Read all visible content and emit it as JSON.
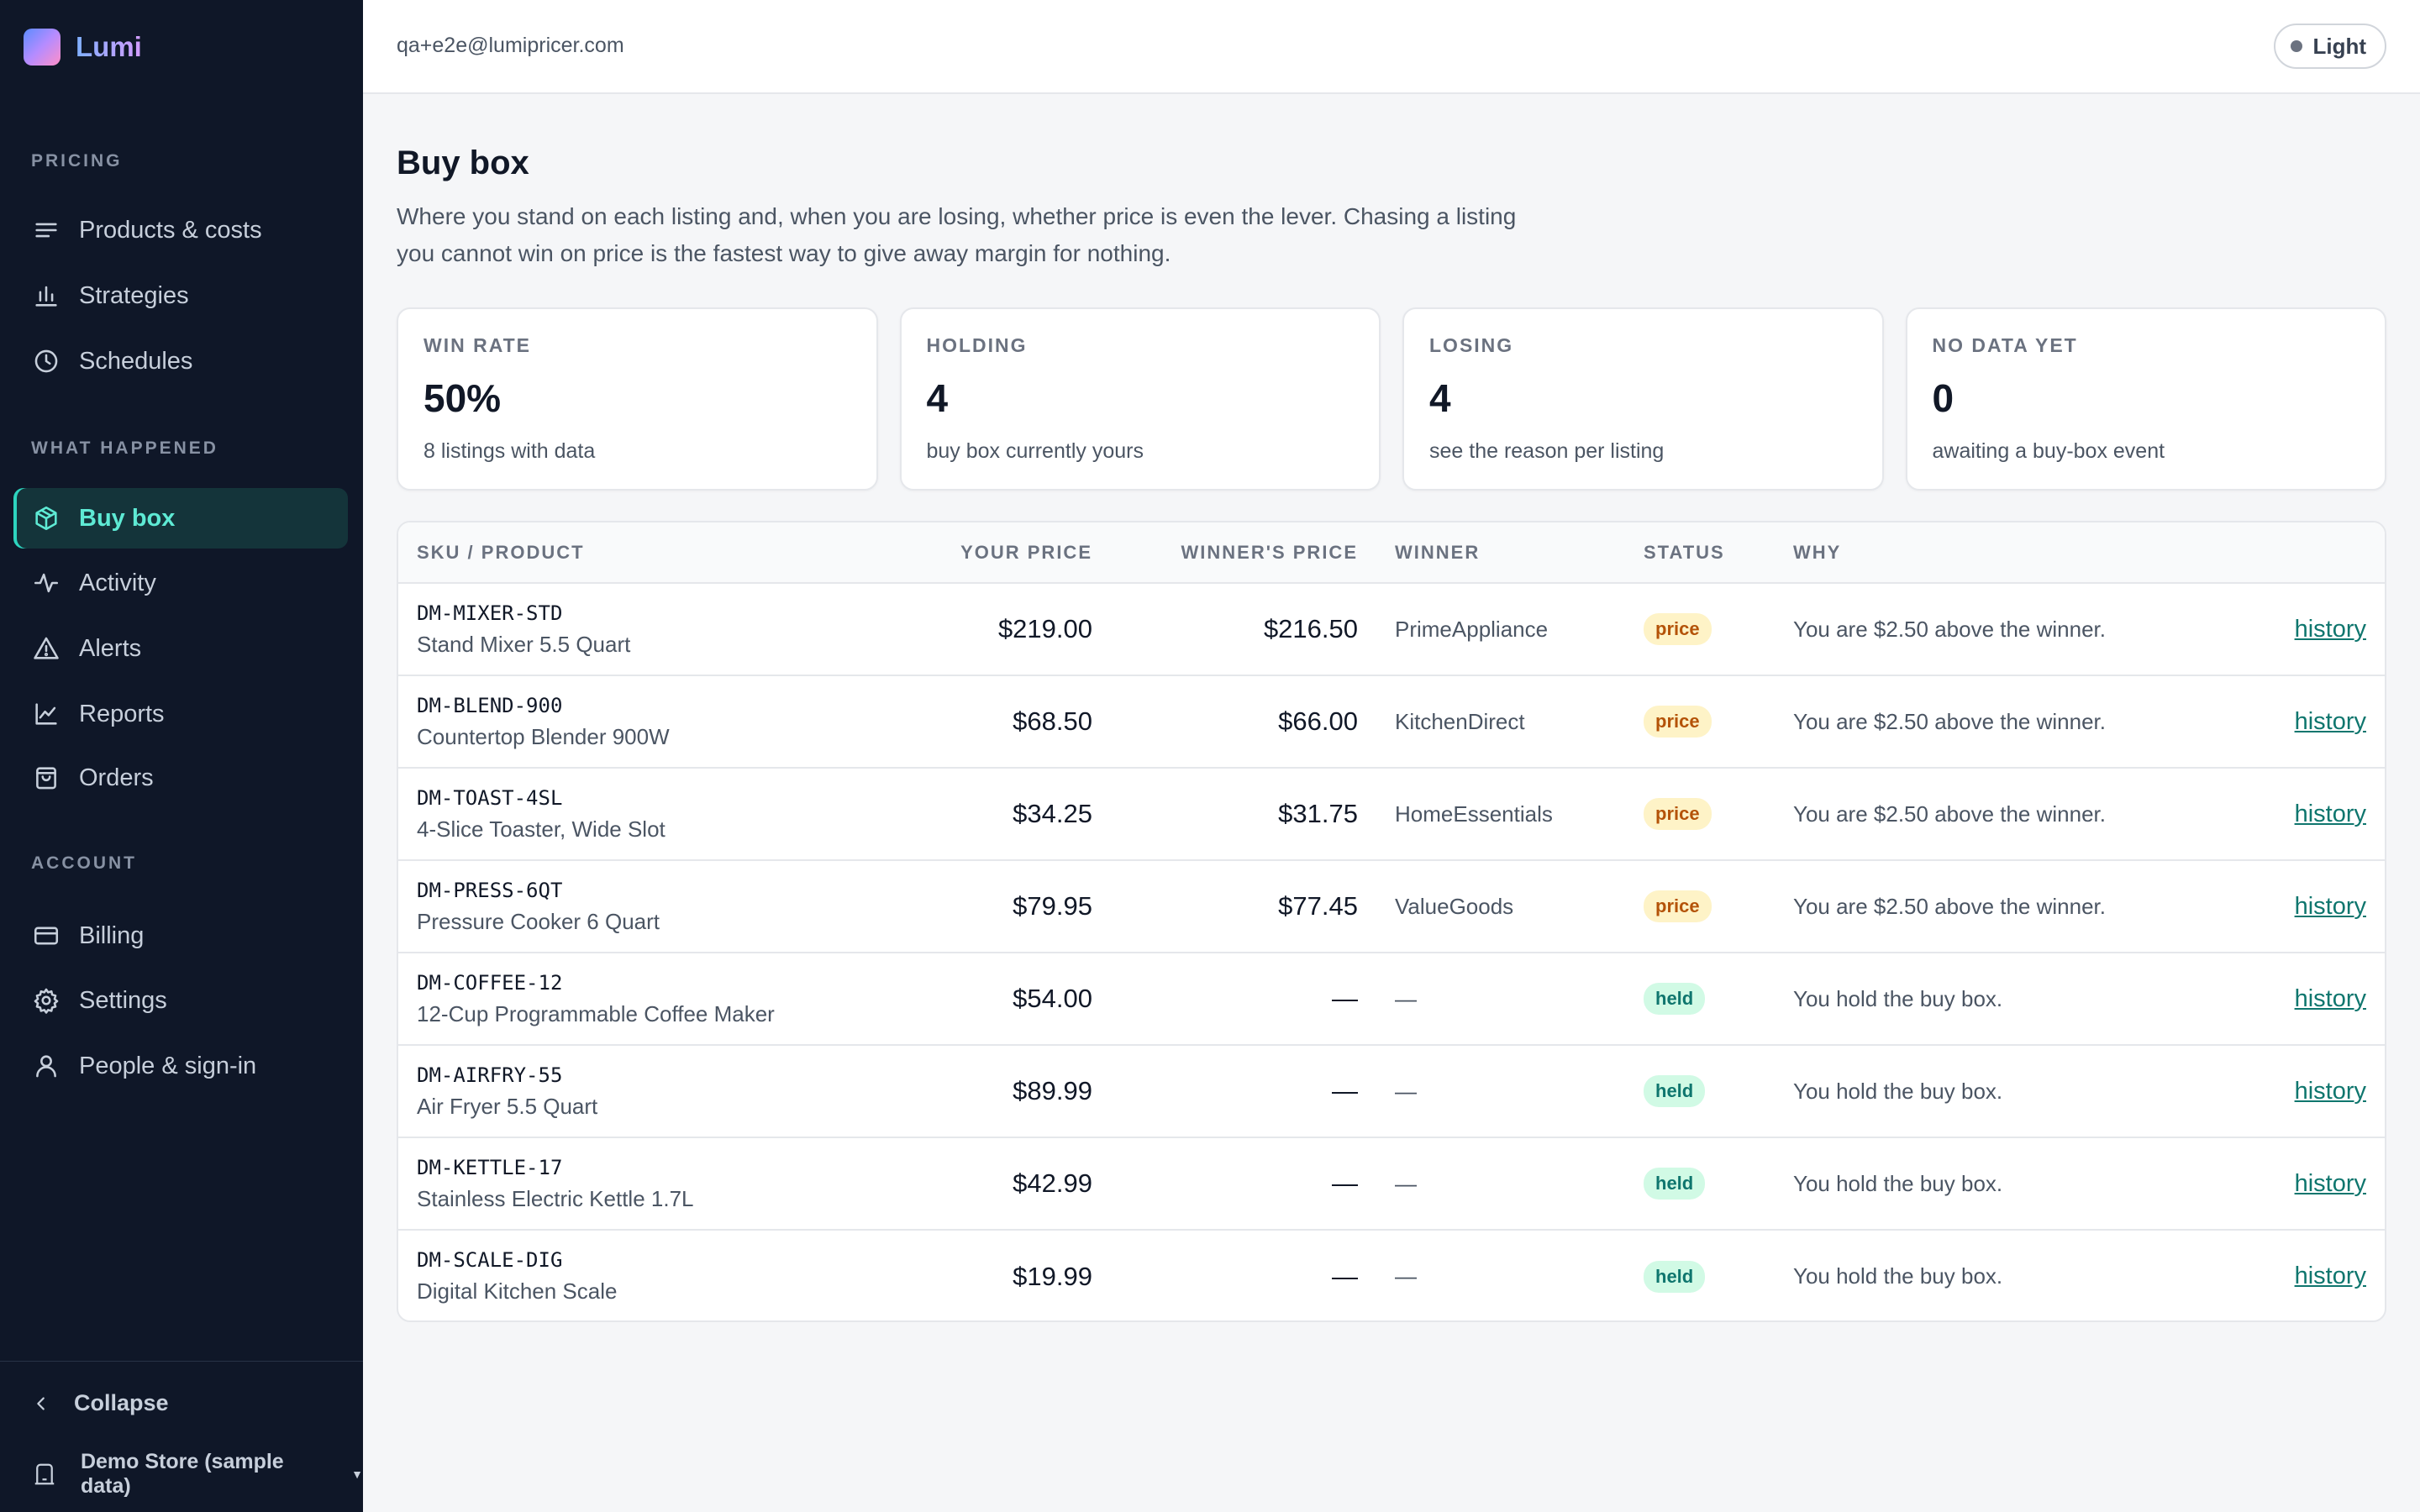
{
  "app": {
    "name": "Lumi"
  },
  "sidebar": {
    "sections": [
      {
        "label": "PRICING"
      },
      {
        "label": "WHAT HAPPENED"
      },
      {
        "label": "ACCOUNT"
      }
    ],
    "items": [
      {
        "label": "Products & costs",
        "icon": "list-icon"
      },
      {
        "label": "Strategies",
        "icon": "bar-chart-icon"
      },
      {
        "label": "Schedules",
        "icon": "clock-icon"
      },
      {
        "label": "Buy box",
        "icon": "box-icon",
        "active": true
      },
      {
        "label": "Activity",
        "icon": "activity-icon"
      },
      {
        "label": "Alerts",
        "icon": "alert-triangle-icon"
      },
      {
        "label": "Reports",
        "icon": "line-chart-icon"
      },
      {
        "label": "Orders",
        "icon": "shopping-bag-icon"
      },
      {
        "label": "Billing",
        "icon": "credit-card-icon"
      },
      {
        "label": "Settings",
        "icon": "gear-icon"
      },
      {
        "label": "People & sign-in",
        "icon": "user-icon"
      }
    ],
    "collapse_label": "Collapse",
    "store_label": "Demo Store (sample data)"
  },
  "topbar": {
    "email": "qa+e2e@lumipricer.com",
    "theme_label": "Light"
  },
  "page": {
    "title": "Buy box",
    "description": "Where you stand on each listing and, when you are losing, whether price is even the lever. Chasing a listing you cannot win on price is the fastest way to give away margin for nothing."
  },
  "cards": [
    {
      "label": "WIN RATE",
      "value": "50%",
      "sub": "8 listings with data"
    },
    {
      "label": "HOLDING",
      "value": "4",
      "sub": "buy box currently yours"
    },
    {
      "label": "LOSING",
      "value": "4",
      "sub": "see the reason per listing"
    },
    {
      "label": "NO DATA YET",
      "value": "0",
      "sub": "awaiting a buy-box event"
    }
  ],
  "table": {
    "columns": [
      "SKU / PRODUCT",
      "YOUR PRICE",
      "WINNER'S PRICE",
      "WINNER",
      "STATUS",
      "WHY"
    ],
    "rows": [
      {
        "sku": "DM-MIXER-STD",
        "product": "Stand Mixer 5.5 Quart",
        "your_price": "$219.00",
        "winner_price": "$216.50",
        "winner": "PrimeAppliance",
        "status": "price",
        "why": "You are $2.50 above the winner.",
        "link": "history"
      },
      {
        "sku": "DM-BLEND-900",
        "product": "Countertop Blender 900W",
        "your_price": "$68.50",
        "winner_price": "$66.00",
        "winner": "KitchenDirect",
        "status": "price",
        "why": "You are $2.50 above the winner.",
        "link": "history"
      },
      {
        "sku": "DM-TOAST-4SL",
        "product": "4-Slice Toaster, Wide Slot",
        "your_price": "$34.25",
        "winner_price": "$31.75",
        "winner": "HomeEssentials",
        "status": "price",
        "why": "You are $2.50 above the winner.",
        "link": "history"
      },
      {
        "sku": "DM-PRESS-6QT",
        "product": "Pressure Cooker 6 Quart",
        "your_price": "$79.95",
        "winner_price": "$77.45",
        "winner": "ValueGoods",
        "status": "price",
        "why": "You are $2.50 above the winner.",
        "link": "history"
      },
      {
        "sku": "DM-COFFEE-12",
        "product": "12-Cup Programmable Coffee Maker",
        "your_price": "$54.00",
        "winner_price": "—",
        "winner": "—",
        "status": "held",
        "why": "You hold the buy box.",
        "link": "history"
      },
      {
        "sku": "DM-AIRFRY-55",
        "product": "Air Fryer 5.5 Quart",
        "your_price": "$89.99",
        "winner_price": "—",
        "winner": "—",
        "status": "held",
        "why": "You hold the buy box.",
        "link": "history"
      },
      {
        "sku": "DM-KETTLE-17",
        "product": "Stainless Electric Kettle 1.7L",
        "your_price": "$42.99",
        "winner_price": "—",
        "winner": "—",
        "status": "held",
        "why": "You hold the buy box.",
        "link": "history"
      },
      {
        "sku": "DM-SCALE-DIG",
        "product": "Digital Kitchen Scale",
        "your_price": "$19.99",
        "winner_price": "—",
        "winner": "—",
        "status": "held",
        "why": "You hold the buy box.",
        "link": "history"
      }
    ]
  },
  "colors": {
    "sidebar_bg": "#0f1728",
    "accent": "#2dd4bf",
    "price_badge": "#b45309",
    "held_badge": "#0f766e"
  }
}
